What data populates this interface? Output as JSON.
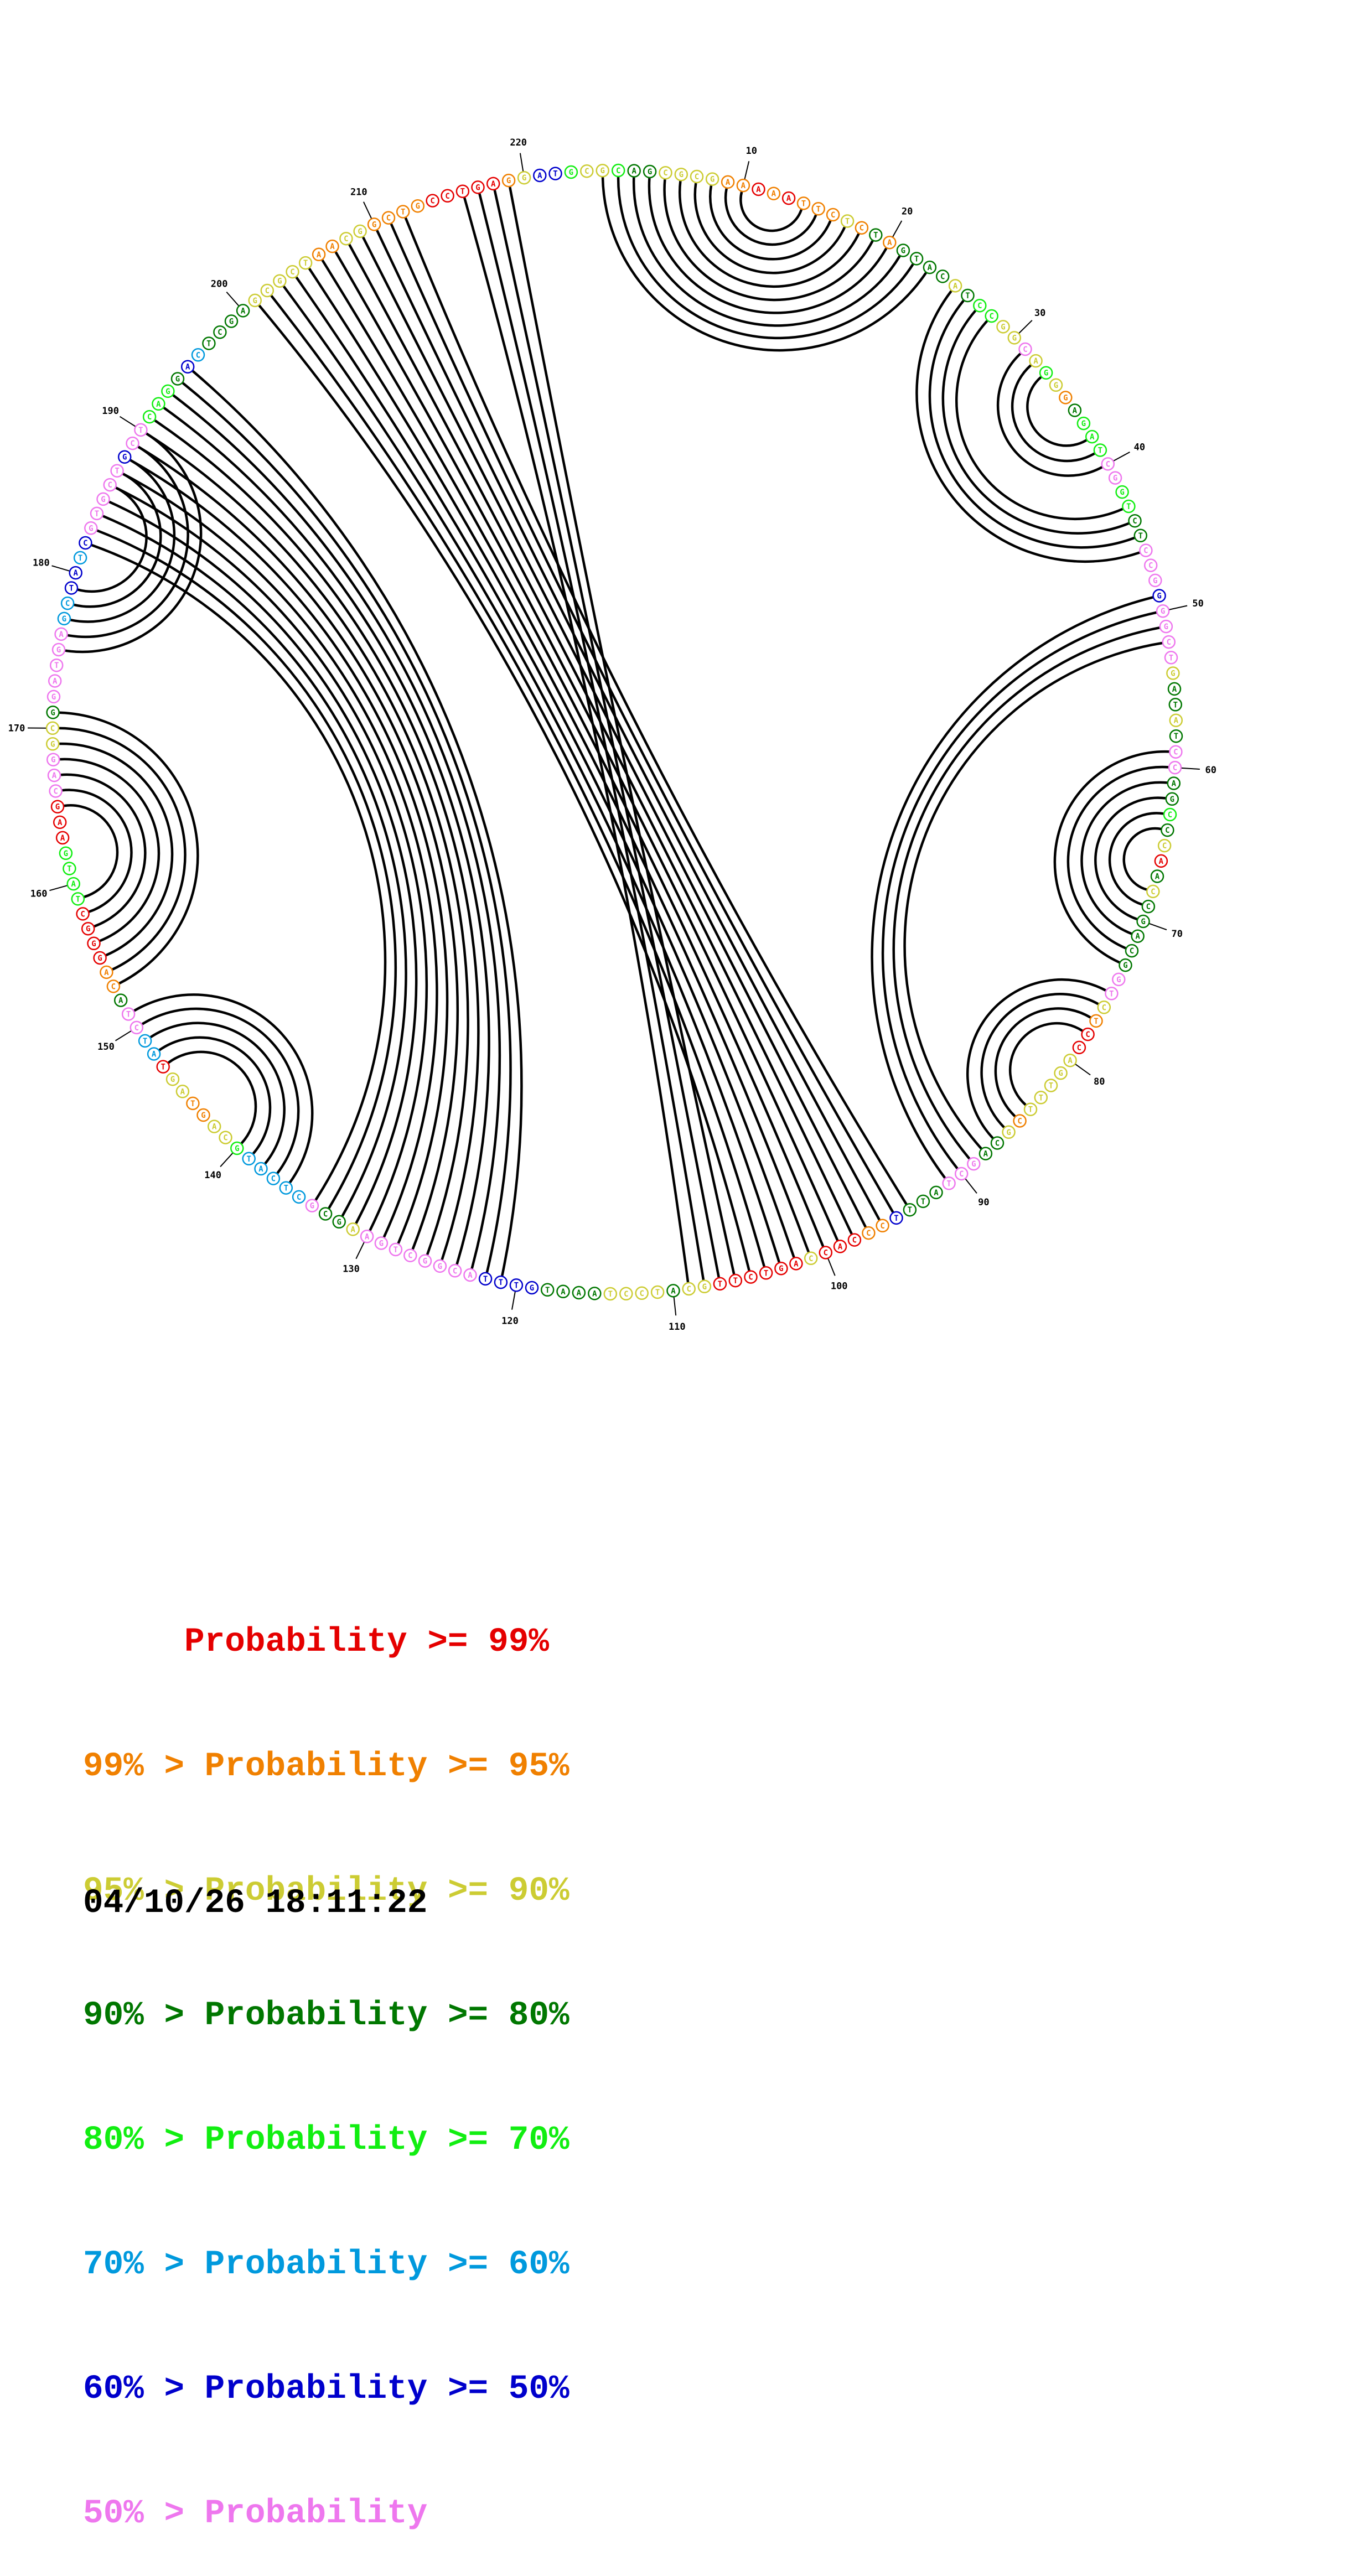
{
  "sequence": "GCAGCGCGAAAAATTCTCTAGTACATCCGGCAGGGAGATCGGTCTCCGGGGCTGATATCCAGCCCAACCGACGGTCTCCAGTTTCGCAGCTATTTCCCACCAGTCTTGCATCCTAAATGTTTACGGCTGAAGCGCTCATGCAGTAGTATCTACAGGGCTATGAAGCAGGCGGATGAGCTATCGTGCTGCTCAGGACTCGAGCGCTAACGGCTGCCTGAGGATGC",
  "colors": [
    "#e50000",
    "#f08000",
    "#cccc33",
    "#007700",
    "#11ee11",
    "#0099dd",
    "#0000cc",
    "#ee77ee"
  ],
  "confidence_classes": [
    2,
    4,
    3,
    3,
    2,
    2,
    2,
    2,
    1,
    1,
    0,
    1,
    0,
    1,
    1,
    1,
    2,
    1,
    3,
    1,
    3,
    3,
    3,
    3,
    2,
    3,
    4,
    4,
    2,
    2,
    7,
    2,
    4,
    2,
    1,
    3,
    4,
    4,
    4,
    7,
    7,
    4,
    4,
    3,
    3,
    7,
    7,
    7,
    6,
    7,
    7,
    7,
    7,
    2,
    3,
    3,
    2,
    3,
    7,
    7,
    3,
    3,
    4,
    3,
    2,
    0,
    3,
    2,
    3,
    3,
    3,
    3,
    3,
    7,
    7,
    2,
    1,
    0,
    0,
    2,
    2,
    2,
    2,
    2,
    1,
    2,
    3,
    3,
    7,
    7,
    7,
    3,
    3,
    3,
    6,
    1,
    1,
    0,
    0,
    0,
    2,
    0,
    0,
    0,
    0,
    0,
    0,
    2,
    2,
    3,
    2,
    2,
    2,
    2,
    3,
    3,
    3,
    3,
    6,
    6,
    6,
    6,
    7,
    7,
    7,
    7,
    7,
    7,
    7,
    7,
    2,
    3,
    3,
    7,
    5,
    5,
    5,
    5,
    5,
    4,
    2,
    2,
    1,
    1,
    2,
    2,
    0,
    5,
    5,
    7,
    7,
    3,
    1,
    1,
    0,
    0,
    0,
    0,
    4,
    4,
    4,
    4,
    0,
    0,
    0,
    7,
    7,
    7,
    2,
    2,
    3,
    7,
    7,
    7,
    7,
    7,
    5,
    5,
    6,
    6,
    5,
    6,
    7,
    7,
    7,
    7,
    7,
    6,
    7,
    7,
    4,
    4,
    4,
    3,
    6,
    5,
    3,
    3,
    3,
    3,
    2,
    2,
    2,
    2,
    2,
    1,
    1,
    2,
    2,
    1,
    1,
    1,
    1,
    0,
    0,
    0,
    0,
    0,
    1,
    2,
    6,
    6,
    4,
    2,
    4,
    2,
    2,
    3,
    3
  ],
  "position_labels": [
    "10",
    "20",
    "30",
    "40",
    "50",
    "60",
    "70",
    "80",
    "90",
    "100",
    "110",
    "120",
    "130",
    "140",
    "150",
    "160",
    "170",
    "180",
    "190",
    "200",
    "210",
    "220"
  ],
  "legend": [
    {
      "prefix": "",
      "gt": "",
      "word": "Probability",
      "op": ">=",
      "value": "99%"
    },
    {
      "prefix": "99%",
      "gt": ">",
      "word": "Probability",
      "op": ">=",
      "value": "95%"
    },
    {
      "prefix": "95%",
      "gt": ">",
      "word": "Probability",
      "op": ">=",
      "value": "90%"
    },
    {
      "prefix": "90%",
      "gt": ">",
      "word": "Probability",
      "op": ">=",
      "value": "80%"
    },
    {
      "prefix": "80%",
      "gt": ">",
      "word": "Probability",
      "op": ">=",
      "value": "70%"
    },
    {
      "prefix": "70%",
      "gt": ">",
      "word": "Probability",
      "op": ">=",
      "value": "60%"
    },
    {
      "prefix": "60%",
      "gt": ">",
      "word": "Probability",
      "op": ">=",
      "value": "50%"
    },
    {
      "prefix": "50%",
      "gt": ">",
      "word": "Probability",
      "op": "",
      "value": ""
    }
  ],
  "timestamp": "04/10/26 18:11:22",
  "base_pairs": [
    [
      1,
      23
    ],
    [
      2,
      22
    ],
    [
      3,
      21
    ],
    [
      4,
      20
    ],
    [
      5,
      19
    ],
    [
      6,
      18
    ],
    [
      7,
      17
    ],
    [
      8,
      16
    ],
    [
      9,
      15
    ],
    [
      10,
      14
    ],
    [
      25,
      46
    ],
    [
      26,
      45
    ],
    [
      27,
      44
    ],
    [
      28,
      43
    ],
    [
      31,
      40
    ],
    [
      32,
      39
    ],
    [
      33,
      38
    ],
    [
      49,
      91
    ],
    [
      50,
      90
    ],
    [
      51,
      89
    ],
    [
      52,
      88
    ],
    [
      59,
      73
    ],
    [
      60,
      72
    ],
    [
      61,
      71
    ],
    [
      62,
      70
    ],
    [
      63,
      69
    ],
    [
      64,
      68
    ],
    [
      75,
      87
    ],
    [
      76,
      86
    ],
    [
      77,
      85
    ],
    [
      78,
      84
    ],
    [
      94,
      212
    ],
    [
      95,
      211
    ],
    [
      96,
      210
    ],
    [
      97,
      209
    ],
    [
      98,
      208
    ],
    [
      99,
      207
    ],
    [
      100,
      206
    ],
    [
      101,
      205
    ],
    [
      102,
      204
    ],
    [
      103,
      203
    ],
    [
      104,
      202
    ],
    [
      105,
      201
    ],
    [
      106,
      219
    ],
    [
      107,
      218
    ],
    [
      108,
      217
    ],
    [
      109,
      216
    ],
    [
      121,
      195
    ],
    [
      122,
      194
    ],
    [
      123,
      193
    ],
    [
      124,
      192
    ],
    [
      125,
      191
    ],
    [
      126,
      190
    ],
    [
      127,
      189
    ],
    [
      128,
      188
    ],
    [
      129,
      187
    ],
    [
      130,
      186
    ],
    [
      131,
      185
    ],
    [
      132,
      184
    ],
    [
      133,
      183
    ],
    [
      134,
      182
    ],
    [
      136,
      151
    ],
    [
      137,
      150
    ],
    [
      138,
      149
    ],
    [
      139,
      148
    ],
    [
      140,
      147
    ],
    [
      153,
      171
    ],
    [
      154,
      170
    ],
    [
      155,
      169
    ],
    [
      156,
      168
    ],
    [
      157,
      167
    ],
    [
      158,
      166
    ],
    [
      159,
      165
    ],
    [
      175,
      190
    ],
    [
      176,
      189
    ],
    [
      177,
      188
    ],
    [
      178,
      187
    ],
    [
      179,
      186
    ]
  ]
}
